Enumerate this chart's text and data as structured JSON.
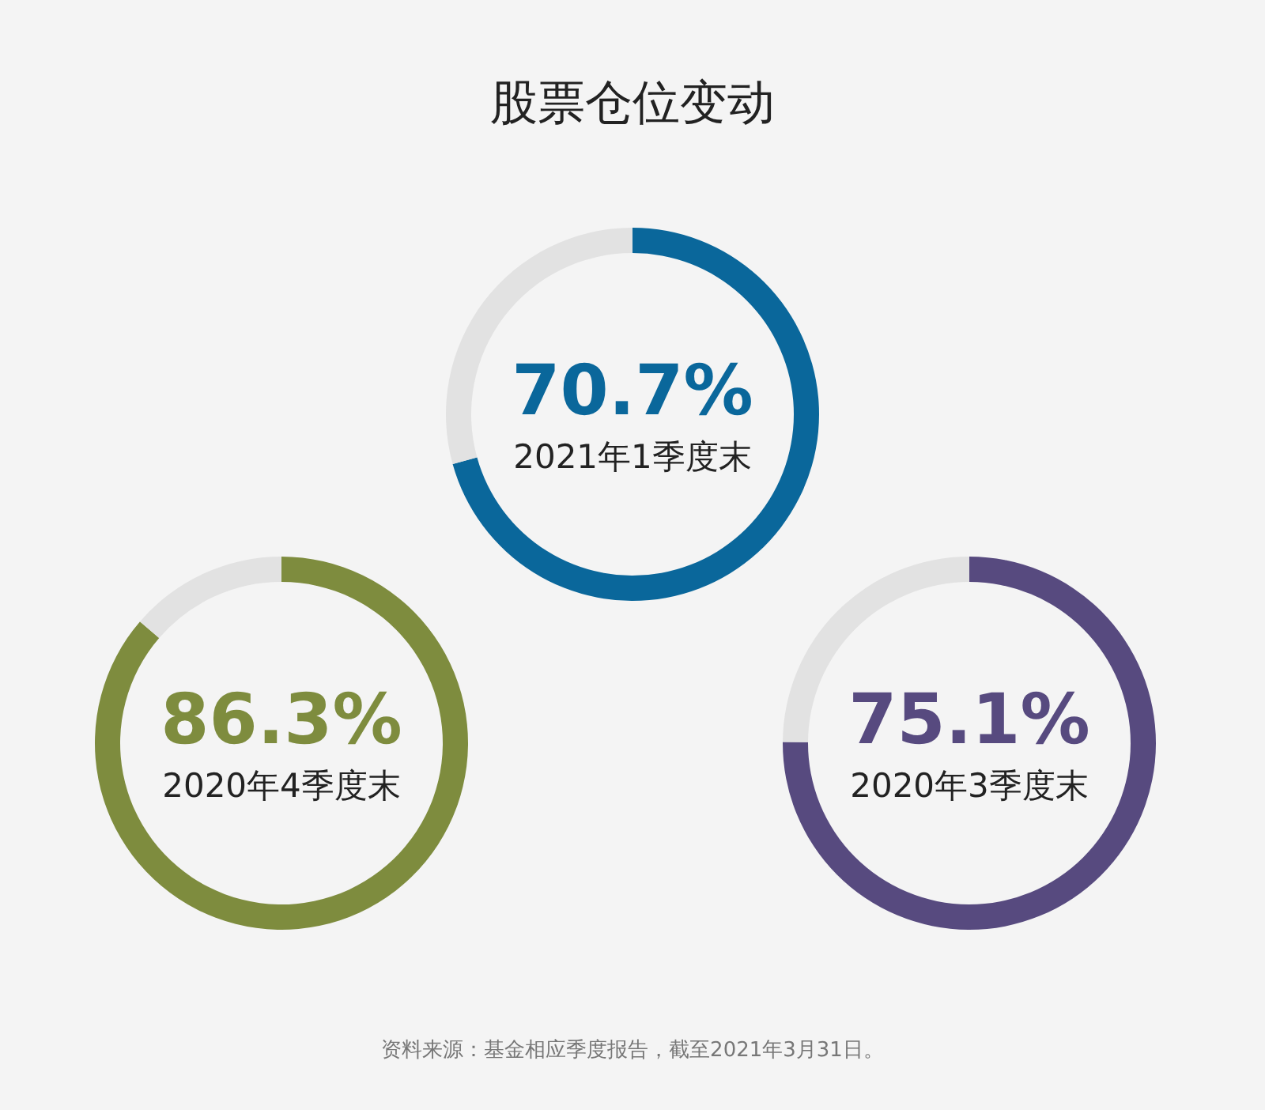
{
  "chart_data": [
    {
      "type": "other",
      "title": "股票仓位变动",
      "annotations": [
        "资料来源：基金相应季度报告，截至2021年3月31日。"
      ]
    },
    {
      "type": "donut",
      "title": "2021年1季度末",
      "categories": [
        null,
        null
      ],
      "values": [
        70.7,
        29.3
      ],
      "colors": [
        "#0a679b",
        "#e2e2e2"
      ],
      "value_labels": [
        "70.7%",
        null
      ]
    },
    {
      "type": "donut",
      "title": "2020年4季度末",
      "categories": [
        null,
        null
      ],
      "values": [
        86.3,
        13.7
      ],
      "colors": [
        "#7e8c3e",
        "#e2e2e2"
      ],
      "value_labels": [
        "86.3%",
        null
      ]
    },
    {
      "type": "donut",
      "title": "2020年3季度末",
      "categories": [
        null,
        null
      ],
      "values": [
        75.1,
        24.9
      ],
      "colors": [
        "#574a7f",
        "#e2e2e2"
      ],
      "value_labels": [
        "75.1%",
        null
      ]
    }
  ]
}
